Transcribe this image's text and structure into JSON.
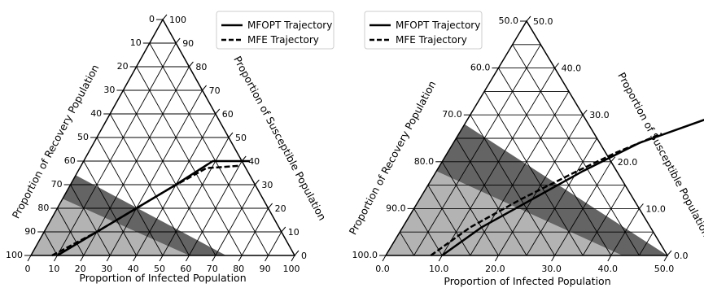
{
  "chart_data": [
    {
      "type": "ternary",
      "bottom_axis_label": "Proportion of Infected Population",
      "left_axis_label": "Proportion of Recovery Population",
      "right_axis_label": "Proportion of Susceptible Population",
      "axis_range": [
        0,
        100
      ],
      "tick_step": 10,
      "bottom_ticks": [
        "0",
        "10",
        "20",
        "30",
        "40",
        "50",
        "60",
        "70",
        "80",
        "90",
        "100"
      ],
      "left_ticks": [
        "100",
        "90",
        "80",
        "70",
        "60",
        "50",
        "40",
        "30",
        "20",
        "10",
        "0"
      ],
      "right_ticks": [
        "0",
        "10",
        "20",
        "30",
        "40",
        "50",
        "60",
        "70",
        "80",
        "90",
        "100"
      ],
      "grid": true,
      "legend_position": "top-right",
      "series": [
        {
          "name": "MFOPT Trajectory",
          "style": "solid",
          "points": [
            [
              10,
              0,
              90
            ],
            [
              22,
              12,
              66
            ],
            [
              30,
              20,
              50
            ],
            [
              39,
              29,
              32
            ],
            [
              49,
              40,
              11
            ],
            [
              63,
              40,
              0
            ]
          ]
        },
        {
          "name": "MFE Trajectory",
          "style": "dashed",
          "points": [
            [
              8,
              0,
              92
            ],
            [
              20,
              10,
              70
            ],
            [
              29,
              19,
              52
            ],
            [
              38,
              28,
              34
            ],
            [
              48,
              37,
              15
            ],
            [
              60,
              38,
              2
            ]
          ]
        }
      ],
      "regions": [
        {
          "label": "",
          "color": "#b3b3b3",
          "description_free": true
        },
        {
          "label": "",
          "color": "#646464",
          "description_free": true
        }
      ],
      "dark_band": {
        "bottom_start": 60,
        "bottom_end": 74,
        "left_start": 76,
        "left_end": 66
      }
    },
    {
      "type": "ternary",
      "bottom_axis_label": "Proportion of Infected Population",
      "left_axis_label": "Proportion of Recovery Population",
      "right_axis_label": "Proportion of Susceptible Population",
      "axis_range": [
        0,
        50
      ],
      "axis_offset": 50,
      "tick_step": 10,
      "bottom_ticks": [
        "0.0",
        "10.0",
        "20.0",
        "30.0",
        "40.0",
        "50.0"
      ],
      "left_ticks": [
        "100.0",
        "90.0",
        "80.0",
        "70.0",
        "60.0",
        "50.0"
      ],
      "right_ticks": [
        "0.0",
        "10.0",
        "20.0",
        "30.0",
        "40.0",
        "50.0"
      ],
      "grid": true,
      "legend_position": "top-left",
      "series": [
        {
          "name": "MFOPT Trajectory",
          "style": "solid",
          "points": [
            [
              10,
              0
            ],
            [
              14,
              6
            ],
            [
              20,
              12
            ],
            [
              26,
              18
            ],
            [
              33,
              24
            ],
            [
              44,
              30
            ]
          ]
        },
        {
          "name": "MFE Trajectory",
          "style": "dashed",
          "points": [
            [
              8,
              0
            ],
            [
              12,
              6
            ],
            [
              18,
              12
            ],
            [
              25,
              18
            ],
            [
              30,
              22
            ],
            [
              36,
              26
            ]
          ]
        }
      ],
      "dark_band": {
        "bottom_start": 42,
        "bottom_end": 50,
        "left_start": 32,
        "left_end": 22
      }
    }
  ]
}
